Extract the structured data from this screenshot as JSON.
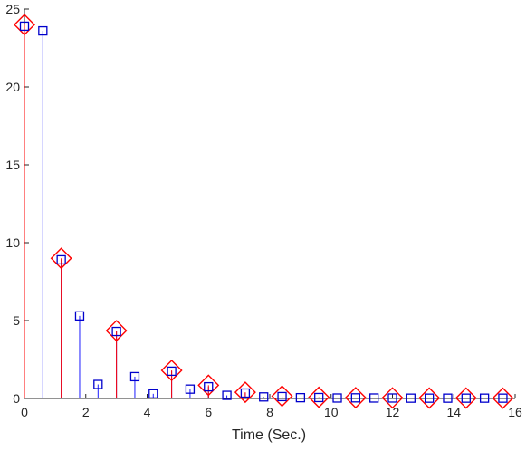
{
  "chart_data": {
    "type": "stem",
    "xlabel": "Time (Sec.)",
    "ylabel": "",
    "title": "",
    "xlim": [
      0,
      16
    ],
    "ylim": [
      0,
      25
    ],
    "x_ticks": [
      0,
      2,
      4,
      6,
      8,
      10,
      12,
      14,
      16
    ],
    "y_ticks": [
      0,
      5,
      10,
      15,
      20,
      25
    ],
    "grid": false,
    "series": [
      {
        "marker": "square",
        "stem_color": "#1a1aff",
        "marker_color": "#0000cc",
        "x": [
          0,
          0.6,
          1.2,
          1.8,
          2.4,
          3.0,
          3.6,
          4.2,
          4.8,
          5.4,
          6.0,
          6.6,
          7.2,
          7.8,
          8.4,
          9.0,
          9.6,
          10.2,
          10.8,
          11.4,
          12.0,
          12.6,
          13.2,
          13.8,
          14.4,
          15.0,
          15.6
        ],
        "y": [
          23.9,
          23.6,
          8.9,
          5.3,
          0.9,
          4.3,
          1.4,
          0.3,
          1.75,
          0.6,
          0.75,
          0.2,
          0.35,
          0.1,
          0.12,
          0.05,
          0.06,
          0.03,
          0.04,
          0.03,
          0.03,
          0.02,
          0.02,
          0.02,
          0.02,
          0.02,
          0.02
        ]
      },
      {
        "marker": "diamond",
        "stem_color": "#ff0000",
        "marker_color": "#ff0000",
        "x": [
          0,
          1.2,
          3.0,
          4.8,
          6.0,
          7.2,
          8.4,
          9.6,
          10.8,
          12.0,
          13.2,
          14.4,
          15.6
        ],
        "y": [
          24,
          9,
          4.35,
          1.8,
          0.85,
          0.4,
          0.15,
          0.08,
          0.05,
          0.04,
          0.03,
          0.03,
          0.02
        ]
      }
    ]
  }
}
